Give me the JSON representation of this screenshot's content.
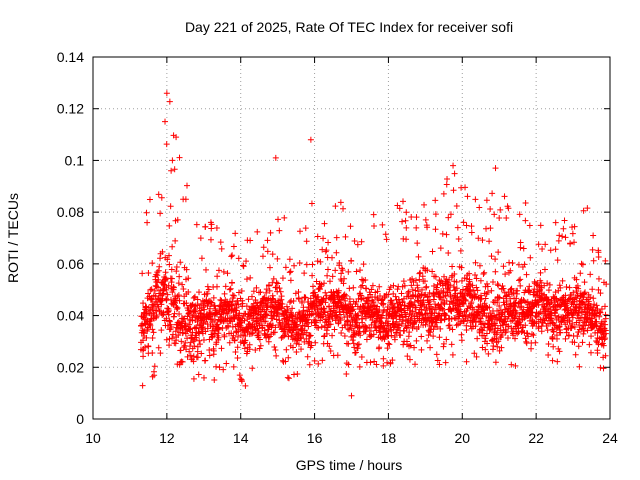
{
  "chart_data": {
    "type": "scatter",
    "title": "Day 221 of 2025, Rate Of TEC Index for receiver sofi",
    "xlabel": "GPS time / hours",
    "ylabel": "ROTI / TECUs",
    "xlim": [
      10,
      24
    ],
    "ylim": [
      0,
      0.14
    ],
    "xticks": [
      10,
      12,
      14,
      16,
      18,
      20,
      22,
      24
    ],
    "xtick_labels": [
      "10",
      "12",
      "14",
      "16",
      "18",
      "20",
      "22",
      "24"
    ],
    "yticks": [
      0,
      0.02,
      0.04,
      0.06,
      0.08,
      0.1,
      0.12,
      0.14
    ],
    "ytick_labels": [
      "0",
      "0.02",
      "0.04",
      "0.06",
      "0.08",
      "0.1",
      "0.12",
      "0.14"
    ],
    "grid": true,
    "marker": "+",
    "color": "#ff0000",
    "series": [
      {
        "name": "ROTI",
        "x": [
          11.3,
          11.5,
          11.7,
          11.9,
          12.1,
          12.3,
          12.5,
          12.7,
          12.9,
          13.1,
          13.3,
          13.5,
          13.7,
          13.9,
          14.1,
          14.3,
          14.5,
          14.7,
          14.9,
          15.1,
          15.3,
          15.5,
          15.7,
          15.9,
          16.1,
          16.3,
          16.5,
          16.7,
          16.9,
          17.1,
          17.3,
          17.5,
          17.7,
          17.9,
          18.1,
          18.3,
          18.5,
          18.7,
          18.9,
          19.1,
          19.3,
          19.5,
          19.7,
          19.9,
          20.1,
          20.3,
          20.5,
          20.7,
          20.9,
          21.1,
          21.3,
          21.5,
          21.7,
          21.9,
          22.1,
          22.3,
          22.5,
          22.7,
          22.9,
          23.1,
          23.3,
          23.5,
          23.7,
          23.9
        ],
        "y": [
          0.035,
          0.04,
          0.045,
          0.05,
          0.045,
          0.04,
          0.04,
          0.035,
          0.038,
          0.04,
          0.038,
          0.04,
          0.042,
          0.04,
          0.035,
          0.038,
          0.04,
          0.042,
          0.045,
          0.04,
          0.035,
          0.035,
          0.038,
          0.04,
          0.045,
          0.04,
          0.042,
          0.05,
          0.04,
          0.038,
          0.04,
          0.042,
          0.04,
          0.038,
          0.04,
          0.042,
          0.04,
          0.042,
          0.045,
          0.043,
          0.045,
          0.045,
          0.045,
          0.042,
          0.045,
          0.043,
          0.04,
          0.04,
          0.038,
          0.04,
          0.042,
          0.04,
          0.04,
          0.042,
          0.045,
          0.043,
          0.04,
          0.042,
          0.042,
          0.045,
          0.042,
          0.04,
          0.035,
          0.035
        ],
        "y_min": [
          0.012,
          0.015,
          0.015,
          0.015,
          0.018,
          0.012,
          0.015,
          0.012,
          0.015,
          0.015,
          0.015,
          0.016,
          0.015,
          0.015,
          0.012,
          0.015,
          0.015,
          0.02,
          0.018,
          0.015,
          0.012,
          0.012,
          0.015,
          0.02,
          0.02,
          0.02,
          0.022,
          0.02,
          0.015,
          0.01,
          0.015,
          0.02,
          0.02,
          0.02,
          0.018,
          0.02,
          0.02,
          0.02,
          0.022,
          0.022,
          0.02,
          0.02,
          0.02,
          0.02,
          0.022,
          0.022,
          0.02,
          0.02,
          0.02,
          0.02,
          0.02,
          0.02,
          0.02,
          0.02,
          0.02,
          0.02,
          0.02,
          0.02,
          0.02,
          0.02,
          0.02,
          0.02,
          0.018,
          0.018
        ],
        "y_max": [
          0.08,
          0.085,
          0.09,
          0.095,
          0.127,
          0.11,
          0.1,
          0.09,
          0.075,
          0.075,
          0.08,
          0.078,
          0.08,
          0.075,
          0.07,
          0.07,
          0.075,
          0.08,
          0.088,
          0.085,
          0.07,
          0.07,
          0.075,
          0.09,
          0.08,
          0.075,
          0.085,
          0.09,
          0.075,
          0.085,
          0.09,
          0.085,
          0.085,
          0.08,
          0.08,
          0.085,
          0.085,
          0.085,
          0.09,
          0.095,
          0.085,
          0.09,
          0.098,
          0.095,
          0.09,
          0.085,
          0.09,
          0.085,
          0.097,
          0.088,
          0.082,
          0.08,
          0.085,
          0.085,
          0.085,
          0.075,
          0.08,
          0.078,
          0.08,
          0.085,
          0.09,
          0.08,
          0.07,
          0.065
        ],
        "outliers": [
          {
            "x": 12.0,
            "y": 0.126
          },
          {
            "x": 11.95,
            "y": 0.115
          },
          {
            "x": 12.25,
            "y": 0.109
          },
          {
            "x": 12.15,
            "y": 0.1
          },
          {
            "x": 14.95,
            "y": 0.101
          },
          {
            "x": 15.9,
            "y": 0.108
          },
          {
            "x": 19.75,
            "y": 0.098
          },
          {
            "x": 20.9,
            "y": 0.097
          },
          {
            "x": 17.0,
            "y": 0.009
          }
        ]
      }
    ]
  }
}
